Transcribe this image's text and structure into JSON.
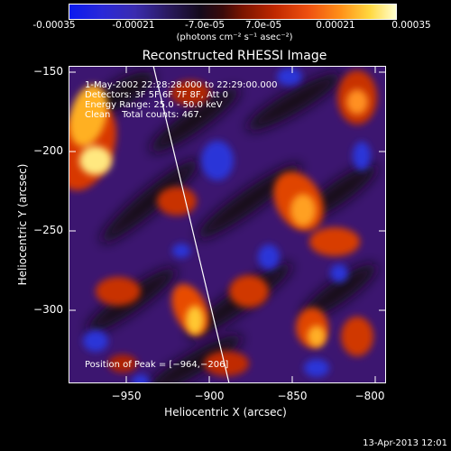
{
  "colorbar": {
    "tick_labels": [
      "-0.00035",
      "-0.00021",
      "-7.0e-05",
      "7.0e-05",
      "0.00021",
      "0.00035"
    ],
    "units_label": "(photons cm⁻² s⁻¹ asec⁻²)",
    "min": -0.00035,
    "max": 0.00035
  },
  "plot": {
    "title": "Reconstructed RHESSI Image",
    "xlabel": "Heliocentric X (arcsec)",
    "ylabel": "Heliocentric Y (arcsec)",
    "x_ticks": [
      "−950",
      "−900",
      "−850",
      "−800"
    ],
    "y_ticks": [
      "−150",
      "−200",
      "−250",
      "−300"
    ],
    "xlim": [
      -984,
      -792
    ],
    "ylim": [
      -345,
      -145
    ],
    "info": {
      "time": "1-May-2002 22:28:28.000 to 22:29:00.000",
      "detectors": "Detectors: 3F 5F 6F 7F 8F, Att 0",
      "energy": "Energy Range: 25.0 - 50.0 keV",
      "method": "Clean    Total counts: 467."
    },
    "peak_label": "Position of Peak = [−964,−206]"
  },
  "timestamp": "13-Apr-2013 12:01"
}
